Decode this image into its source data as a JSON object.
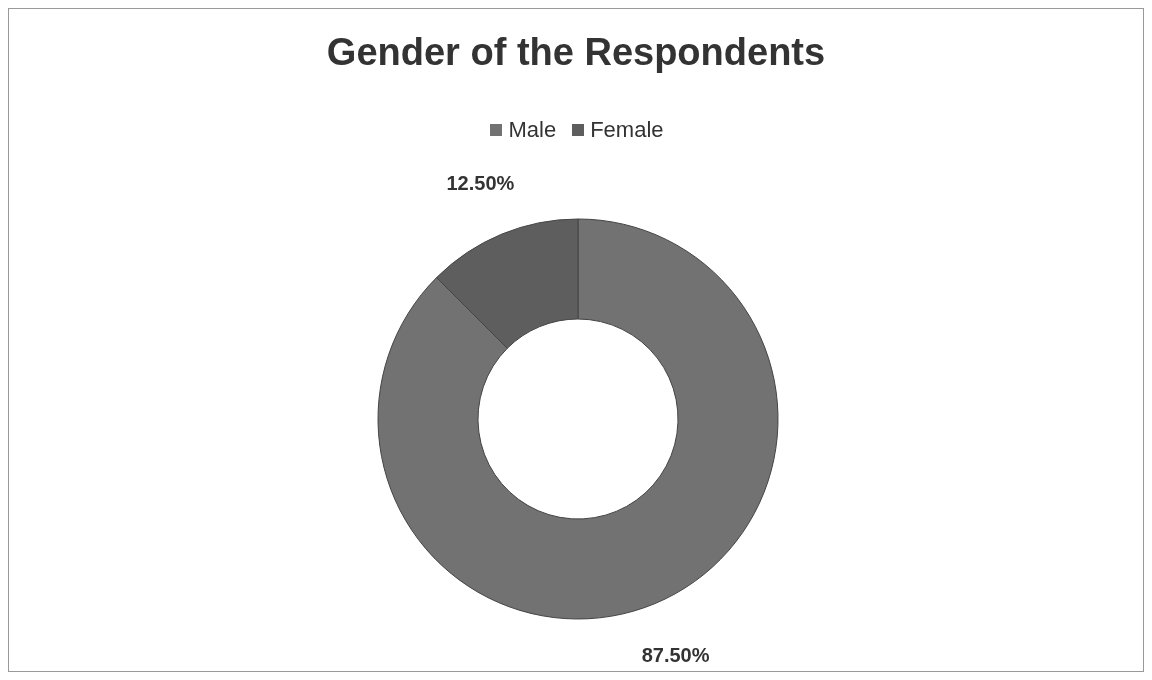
{
  "chart_data": {
    "type": "donut",
    "title": "Gender of the Respondents",
    "categories": [
      "Male",
      "Female"
    ],
    "values": [
      87.5,
      12.5
    ],
    "colors": [
      "#727272",
      "#5e5e5e"
    ],
    "value_labels": [
      "87.50%",
      "12.50%"
    ],
    "legend": "top"
  }
}
